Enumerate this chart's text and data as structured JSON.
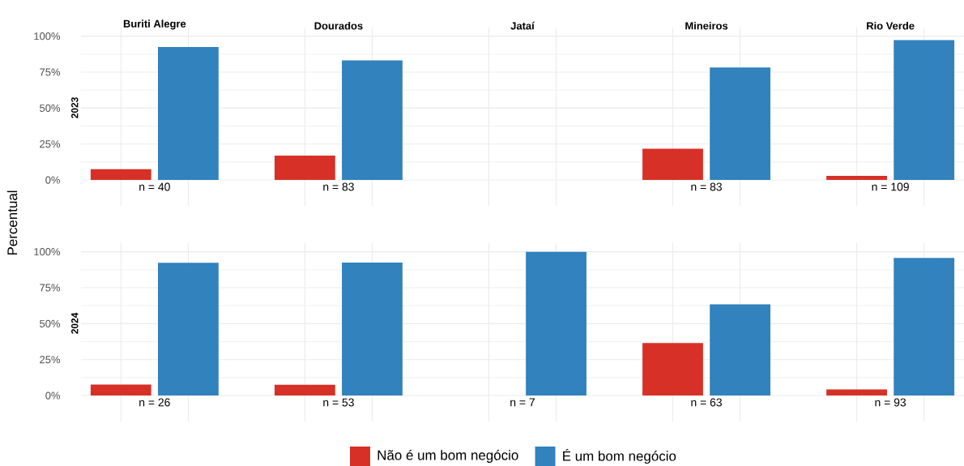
{
  "chart_data": [
    {
      "type": "bar",
      "ylabel": "2023",
      "categories": [
        "Buriti Alegre",
        "Dourados",
        "Jataí",
        "Mineiros",
        "Rio Verde"
      ],
      "series": [
        {
          "name": "Não é um bom negócio",
          "color": "#d73027",
          "values": [
            7.5,
            16.9,
            null,
            21.7,
            2.8
          ]
        },
        {
          "name": "É um bom negócio",
          "color": "#3182bd",
          "values": [
            92.5,
            83.1,
            null,
            78.3,
            97.2
          ]
        }
      ],
      "ylim": [
        -18,
        106
      ],
      "yticks": [
        {
          "value": 0,
          "label": "0%"
        },
        {
          "value": 25,
          "label": "25%"
        },
        {
          "value": 50,
          "label": "50%"
        },
        {
          "value": 75,
          "label": "75%"
        },
        {
          "value": 100,
          "label": "100%"
        }
      ],
      "grid": true,
      "legend": "bottom",
      "annotations": [
        "n = 40",
        "n = 83",
        "n = 83",
        "n = 109",
        "Percentual"
      ]
    },
    {
      "type": "bar",
      "ylabel": "2024",
      "categories": [
        null,
        null,
        null,
        null,
        null
      ],
      "series": [
        {
          "color": "#d73027",
          "values": [
            7.7,
            7.5,
            null,
            36.5,
            4.3
          ]
        },
        {
          "color": "#3182bd",
          "values": [
            92.3,
            92.5,
            100,
            63.5,
            95.7
          ]
        }
      ],
      "ylim": [
        -18,
        106
      ],
      "yticks": [
        {
          "value": 0,
          "label": "0%"
        },
        {
          "value": 25,
          "label": "25%"
        },
        {
          "value": 50,
          "label": "50%"
        },
        {
          "value": 75,
          "label": "75%"
        },
        {
          "value": 100,
          "label": "100%"
        }
      ],
      "grid": true,
      "tick_labels": "y",
      "annotations": [
        "n = 26",
        "n = 53",
        "n = 7",
        "n = 63",
        "n = 93"
      ]
    }
  ]
}
